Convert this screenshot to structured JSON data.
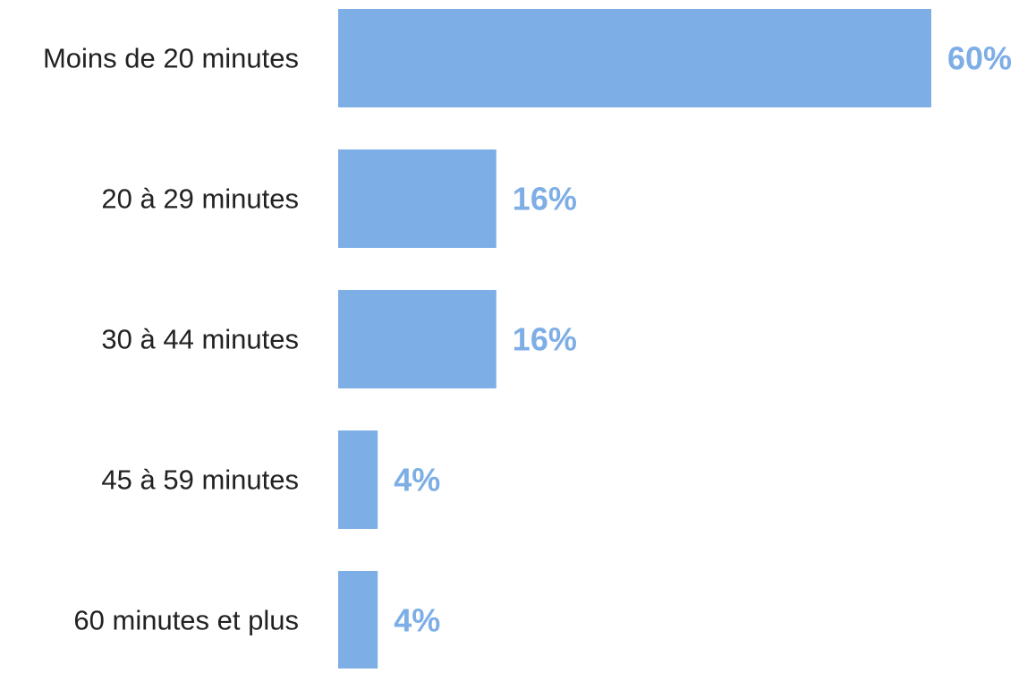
{
  "chart_data": {
    "type": "bar",
    "orientation": "horizontal",
    "categories": [
      "Moins de 20 minutes",
      "20 à 29 minutes",
      "30 à 44 minutes",
      "45 à 59 minutes",
      "60 minutes et plus"
    ],
    "values": [
      60,
      16,
      16,
      4,
      4
    ],
    "value_labels": [
      "60%",
      "16%",
      "16%",
      "4%",
      "4%"
    ],
    "unit": "%",
    "xlim": [
      0,
      60
    ],
    "grid": false,
    "legend": "none",
    "title": "",
    "xlabel": "",
    "ylabel": ""
  },
  "colors": {
    "bar": "#7eaee6",
    "value_label": "#7eaee6",
    "category_label": "#222222",
    "background": "#ffffff"
  }
}
